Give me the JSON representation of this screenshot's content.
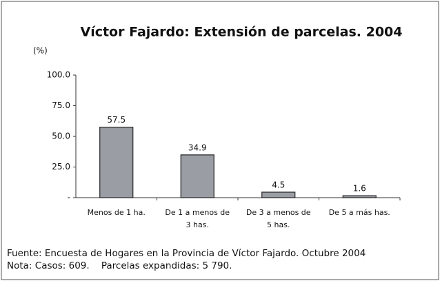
{
  "chart_data": {
    "type": "bar",
    "title": "Víctor Fajardo: Extensión de parcelas. 2004",
    "y_label": "(%)",
    "categories": [
      "Menos de 1 ha.",
      "De 1 a menos de 3 has.",
      "De 3 a menos de 5 has.",
      "De 5 a más has."
    ],
    "values": [
      57.5,
      34.9,
      4.5,
      1.6
    ],
    "color": "#9a9ea4",
    "ylim": [
      0,
      100
    ],
    "yticks": [
      {
        "value": 0,
        "label": "-"
      },
      {
        "value": 25,
        "label": "25.0"
      },
      {
        "value": 50,
        "label": "50.0"
      },
      {
        "value": 75,
        "label": "75.0"
      },
      {
        "value": 100,
        "label": "100.0"
      }
    ],
    "grid": false,
    "source": "Fuente: Encuesta de Hogares en la Provincia de Víctor Fajardo. Octubre 2004",
    "note": "Nota: Casos: 609.    Parcelas expandidas: 5 790."
  }
}
